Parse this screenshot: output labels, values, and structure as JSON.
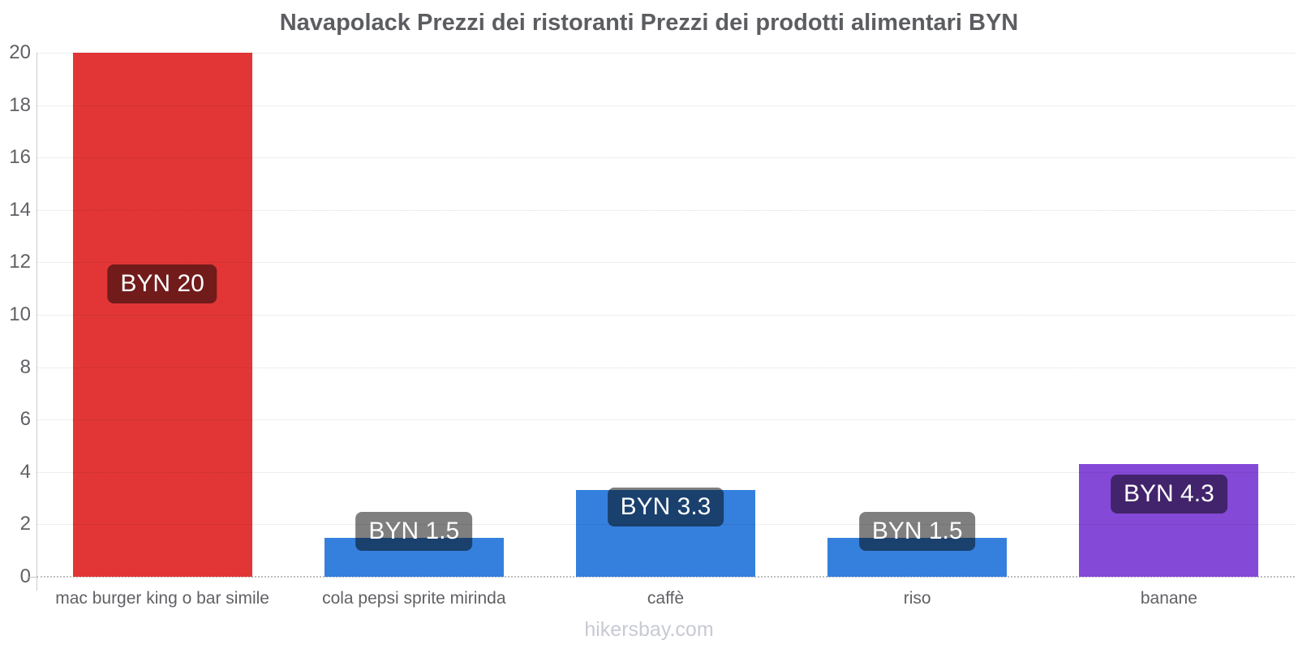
{
  "chart_data": {
    "type": "bar",
    "title": "Navapolack Prezzi dei ristoranti Prezzi dei prodotti alimentari BYN",
    "categories": [
      "mac burger king o bar simile",
      "cola pepsi sprite mirinda",
      "caffè",
      "riso",
      "banane"
    ],
    "values": [
      20,
      1.5,
      3.3,
      1.5,
      4.3
    ],
    "bar_labels": [
      "BYN 20",
      "BYN 1.5",
      "BYN 3.3",
      "BYN 1.5",
      "BYN 4.3"
    ],
    "bar_colors": [
      "#e23636",
      "#3580dd",
      "#3580dd",
      "#3580dd",
      "#8549d8"
    ],
    "currency": "BYN",
    "xlabel": "",
    "ylabel": "",
    "ylim": [
      0,
      20
    ],
    "yticks": [
      0,
      2,
      4,
      6,
      8,
      10,
      12,
      14,
      16,
      18,
      20
    ],
    "grid": "horizontal-dotted",
    "legend_position": "none",
    "value_label_bg": "rgba(0,0,0,0.5)",
    "watermark": "hikersbay.com"
  },
  "colors": {
    "background": "#ffffff",
    "title_text": "#5c5d61",
    "axis_line": "#cccccc",
    "tick_text": "#606165",
    "category_text": "#606165",
    "watermark_text": "#c8cad3"
  }
}
